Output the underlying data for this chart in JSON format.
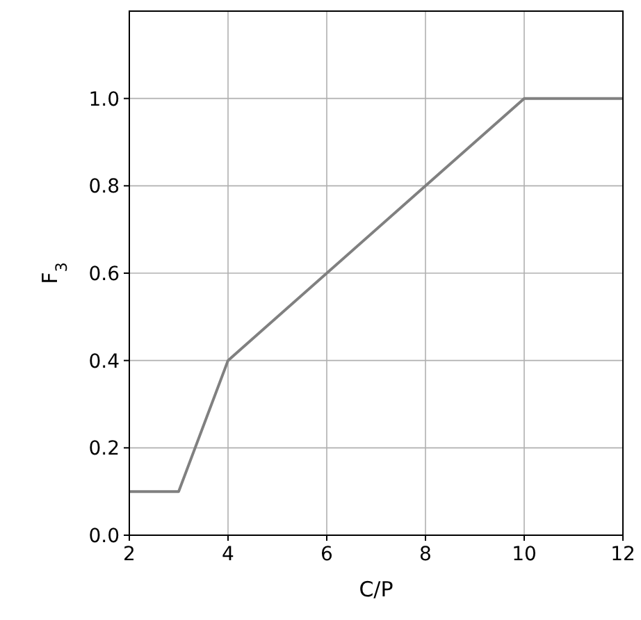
{
  "chart_data": {
    "type": "line",
    "xlabel": "C/P",
    "ylabel": "F$_{3}$",
    "x": [
      2,
      3,
      4,
      10,
      12
    ],
    "series": [
      {
        "color": "#808080",
        "values": [
          0.1,
          0.1,
          0.4,
          1.0,
          1.0
        ]
      }
    ],
    "xlim": [
      2,
      12
    ],
    "xticks": [
      2,
      4,
      6,
      8,
      10,
      12
    ],
    "ylim": [
      0,
      1.2
    ],
    "yticks": [
      {
        "value": 0.0,
        "label": "0.0"
      },
      {
        "value": 0.2,
        "label": "0.2"
      },
      {
        "value": 0.4,
        "label": "0.4"
      },
      {
        "value": 0.6,
        "label": "0.6"
      },
      {
        "value": 0.8,
        "label": "0.8"
      },
      {
        "value": 1.0,
        "label": "1.0"
      }
    ],
    "grid": true,
    "marker": "none",
    "line_style": "solid"
  }
}
